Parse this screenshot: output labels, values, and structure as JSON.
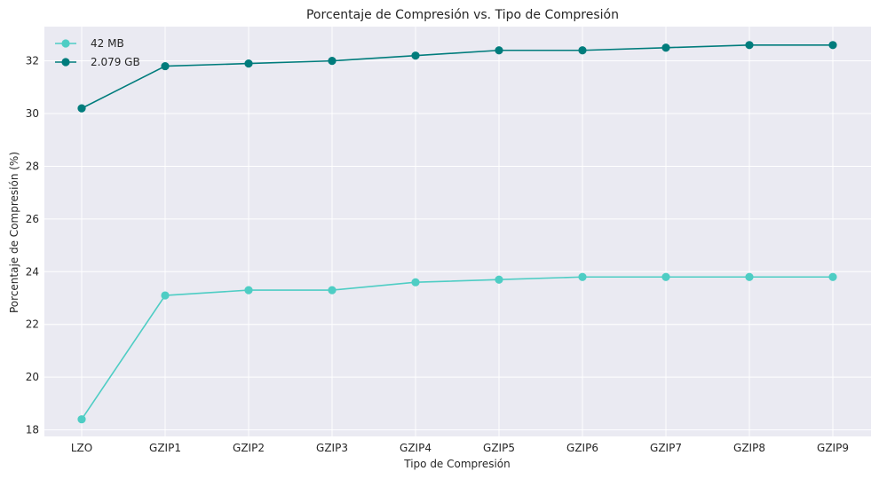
{
  "chart_data": {
    "type": "line",
    "title": "Porcentaje de Compresión vs. Tipo de Compresión",
    "xlabel": "Tipo de Compresión",
    "ylabel": "Porcentaje de Compresión (%)",
    "categories": [
      "LZO",
      "GZIP1",
      "GZIP2",
      "GZIP3",
      "GZIP4",
      "GZIP5",
      "GZIP6",
      "GZIP7",
      "GZIP8",
      "GZIP9"
    ],
    "series": [
      {
        "name": "42 MB",
        "color": "#4ecdc4",
        "values": [
          18.4,
          23.1,
          23.3,
          23.3,
          23.6,
          23.7,
          23.8,
          23.8,
          23.8,
          23.8
        ]
      },
      {
        "name": "2.079 GB",
        "color": "#007c7c",
        "values": [
          30.2,
          31.8,
          31.9,
          32.0,
          32.2,
          32.4,
          32.4,
          32.5,
          32.6,
          32.6
        ]
      }
    ],
    "ylim": [
      17.75,
      33.3
    ],
    "yticks": [
      "18",
      "20",
      "22",
      "24",
      "26",
      "28",
      "30",
      "32"
    ],
    "grid": true,
    "legend": "top-left",
    "background": "#eaeaf2",
    "grid_color": "#ffffff"
  }
}
